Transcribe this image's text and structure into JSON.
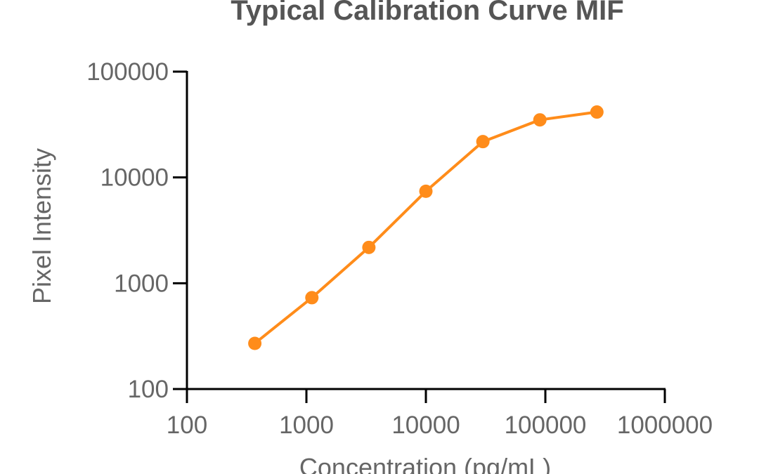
{
  "chart_data": {
    "type": "line",
    "title": "Typical Calibration Curve MIF",
    "xlabel": "Concentration (pg/mL)",
    "ylabel": "Pixel Intensity",
    "x_scale": "log",
    "y_scale": "log",
    "xlim": [
      100,
      1000000
    ],
    "ylim": [
      100,
      100000
    ],
    "x_ticks": [
      "100",
      "1000",
      "10000",
      "100000",
      "1000000"
    ],
    "y_ticks": [
      "100",
      "1000",
      "10000",
      "100000"
    ],
    "grid": false,
    "legend": "none",
    "series": [
      {
        "color": "#FF8C1A",
        "marker": "circle",
        "x": [
          370,
          1111,
          3333,
          10000,
          30000,
          90000,
          270000
        ],
        "y": [
          270,
          730,
          2180,
          7400,
          21800,
          35000,
          41500
        ]
      }
    ]
  },
  "colors": {
    "series": "#FF8C1A",
    "axis": "#000000",
    "text": "#666666",
    "title": "#555555"
  }
}
